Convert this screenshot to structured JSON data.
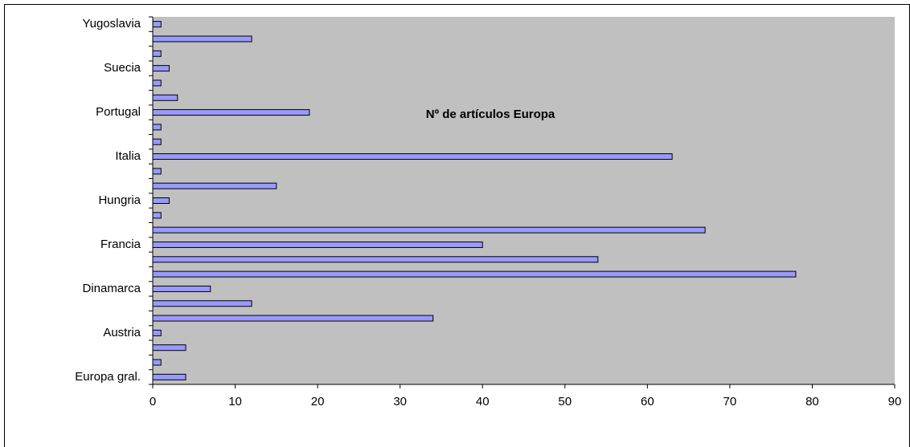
{
  "chart_data": {
    "type": "barh",
    "title": "Nº de artículos Europa",
    "categories": [
      "Europa gral.",
      null,
      null,
      "Austria",
      null,
      null,
      "Dinamarca",
      null,
      null,
      "Francia",
      null,
      null,
      "Hungria",
      null,
      null,
      "Italia",
      null,
      null,
      "Portugal",
      null,
      null,
      "Suecia",
      null,
      null,
      "Yugoslavia"
    ],
    "values": [
      4,
      1,
      4,
      1,
      34,
      12,
      7,
      78,
      54,
      40,
      67,
      1,
      2,
      15,
      1,
      63,
      1,
      1,
      19,
      3,
      1,
      2,
      1,
      12,
      1
    ],
    "color": "#9999ff",
    "background": "#c0c0c0",
    "xlim": [
      0,
      90
    ],
    "xticks": [
      0,
      10,
      20,
      30,
      40,
      50,
      60,
      70,
      80,
      90
    ]
  }
}
